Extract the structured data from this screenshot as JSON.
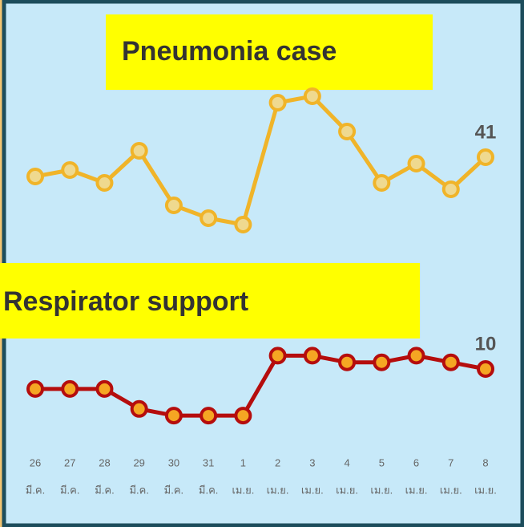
{
  "chart_data": [
    {
      "type": "line",
      "title": "Pneumonia case",
      "color": "#f0b429",
      "marker_fill": "#efd98f",
      "values": [
        35,
        37,
        33,
        43,
        26,
        22,
        20,
        58,
        60,
        49,
        33,
        39,
        31,
        41
      ],
      "ylim": [
        0,
        70
      ]
    },
    {
      "type": "line",
      "title": "Respirator support",
      "color": "#b50d0d",
      "marker_fill": "#f5a623",
      "categories": [
        [
          "26",
          "มี.ค."
        ],
        [
          "27",
          "มี.ค."
        ],
        [
          "28",
          "มี.ค."
        ],
        [
          "29",
          "มี.ค."
        ],
        [
          "30",
          "มี.ค."
        ],
        [
          "31",
          "มี.ค."
        ],
        [
          "1",
          "เม.ย."
        ],
        [
          "2",
          "เม.ย."
        ],
        [
          "3",
          "เม.ย."
        ],
        [
          "4",
          "เม.ย."
        ],
        [
          "5",
          "เม.ย."
        ],
        [
          "6",
          "เม.ย."
        ],
        [
          "7",
          "เม.ย."
        ],
        [
          "8",
          "เม.ย."
        ]
      ],
      "values": [
        7,
        7,
        7,
        4,
        3,
        3,
        3,
        12,
        12,
        11,
        11,
        12,
        11,
        10
      ],
      "ylim": [
        0,
        20
      ]
    }
  ]
}
